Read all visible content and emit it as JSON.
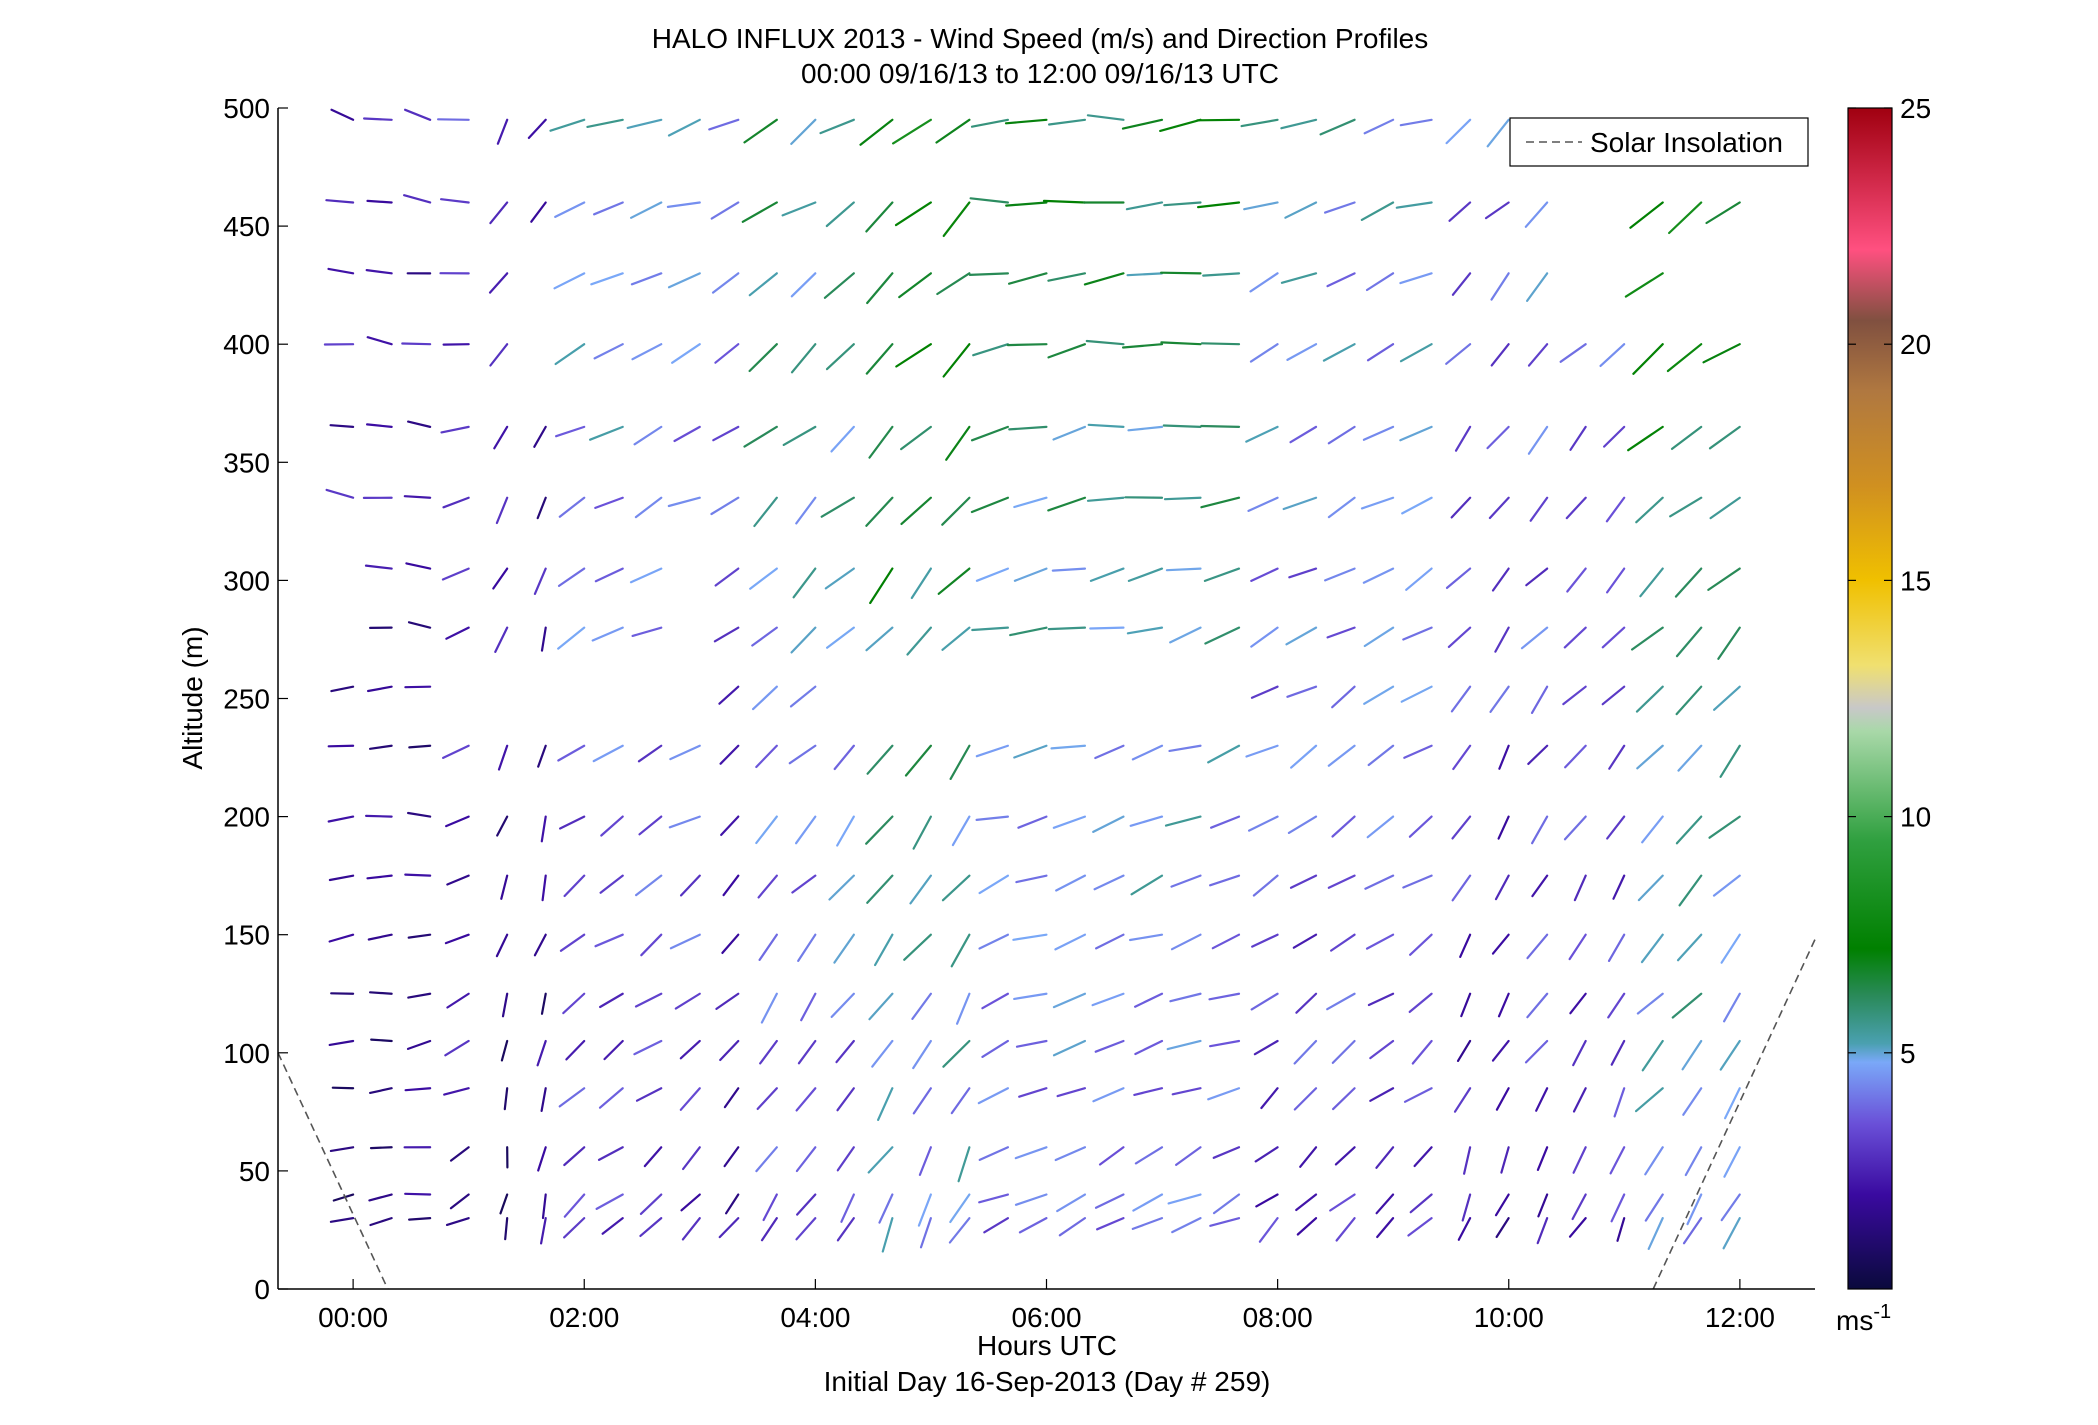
{
  "chart_data": {
    "type": "wind-barb-profile",
    "title": "HALO INFLUX 2013 - Wind Speed (m/s) and Direction Profiles",
    "subtitle": "00:00 09/16/13 to 12:00 09/16/13  UTC",
    "xlabel": "Hours UTC",
    "xlabel2": "Initial Day 16-Sep-2013 (Day # 259)",
    "ylabel": "Altitude (m)",
    "xlim_hours": [
      -0.65,
      12.65
    ],
    "ylim": [
      0,
      500
    ],
    "xticks": [
      {
        "value": 0,
        "label": "00:00"
      },
      {
        "value": 2,
        "label": "02:00"
      },
      {
        "value": 4,
        "label": "04:00"
      },
      {
        "value": 6,
        "label": "06:00"
      },
      {
        "value": 8,
        "label": "08:00"
      },
      {
        "value": 10,
        "label": "10:00"
      },
      {
        "value": 12,
        "label": "12:00"
      }
    ],
    "yticks": [
      {
        "value": 0,
        "label": "0"
      },
      {
        "value": 50,
        "label": "50"
      },
      {
        "value": 100,
        "label": "100"
      },
      {
        "value": 150,
        "label": "150"
      },
      {
        "value": 200,
        "label": "200"
      },
      {
        "value": 250,
        "label": "250"
      },
      {
        "value": 300,
        "label": "300"
      },
      {
        "value": 350,
        "label": "350"
      },
      {
        "value": 400,
        "label": "400"
      },
      {
        "value": 450,
        "label": "450"
      },
      {
        "value": 500,
        "label": "500"
      }
    ],
    "colorbar": {
      "range": [
        0,
        25
      ],
      "ticks": [
        {
          "value": 5,
          "label": "5"
        },
        {
          "value": 10,
          "label": "10"
        },
        {
          "value": 15,
          "label": "15"
        },
        {
          "value": 20,
          "label": "20"
        },
        {
          "value": 25,
          "label": "25"
        }
      ],
      "unit_label": "ms",
      "unit_exp": "-1",
      "stops": [
        {
          "v": 0,
          "c": "#0a0a3c"
        },
        {
          "v": 2,
          "c": "#3a0aa0"
        },
        {
          "v": 3.5,
          "c": "#6a50d8"
        },
        {
          "v": 4.8,
          "c": "#7aa8f8"
        },
        {
          "v": 5.2,
          "c": "#4aa0b0"
        },
        {
          "v": 6.2,
          "c": "#2a8a5a"
        },
        {
          "v": 7.2,
          "c": "#008000"
        },
        {
          "v": 9.5,
          "c": "#30a040"
        },
        {
          "v": 11.8,
          "c": "#a8d8a8"
        },
        {
          "v": 12.3,
          "c": "#c8c8c8"
        },
        {
          "v": 13.2,
          "c": "#f0e070"
        },
        {
          "v": 15,
          "c": "#f0c000"
        },
        {
          "v": 17,
          "c": "#d09020"
        },
        {
          "v": 19,
          "c": "#b07840"
        },
        {
          "v": 20.5,
          "c": "#805040"
        },
        {
          "v": 22,
          "c": "#ff5080"
        },
        {
          "v": 25,
          "c": "#a00010"
        }
      ]
    },
    "legend": {
      "label": "Solar Insolation",
      "position": "top-right",
      "color": "#555555"
    },
    "solar_insolation_curve": {
      "left": [
        {
          "x": -0.65,
          "y": 100
        },
        {
          "x": 0.3,
          "y": 0
        }
      ],
      "right": [
        {
          "x": 11.25,
          "y": 0
        },
        {
          "x": 12.65,
          "y": 148
        }
      ]
    },
    "altitudes_m": [
      30,
      40,
      60,
      85,
      105,
      125,
      150,
      175,
      200,
      230,
      255,
      280,
      305,
      335,
      365,
      400,
      430,
      460,
      495
    ],
    "times_hours_start": 0.0,
    "times_hours_step": 0.3333,
    "times_count": 37,
    "segments": [
      {
        "t0": 0.0,
        "t1": 0.7,
        "spd": 2.5,
        "dir": 270
      },
      {
        "t0": 0.7,
        "t1": 1.1,
        "spd": 3.5,
        "dir": 255
      },
      {
        "t0": 1.1,
        "t1": 1.8,
        "spd": 2.5,
        "dir": 200
      },
      {
        "t0": 1.8,
        "t1": 3.0,
        "spd": 5.0,
        "dir": 240
      },
      {
        "t0": 3.0,
        "t1": 3.4,
        "spd": 4.0,
        "dir": 230
      },
      {
        "t0": 3.4,
        "t1": 4.4,
        "spd": 6.0,
        "dir": 225
      },
      {
        "t0": 4.4,
        "t1": 5.6,
        "spd": 7.5,
        "dir": 220
      },
      {
        "t0": 5.6,
        "t1": 7.7,
        "spd": 6.5,
        "dir": 255
      },
      {
        "t0": 7.7,
        "t1": 9.4,
        "spd": 5.0,
        "dir": 240
      },
      {
        "t0": 9.4,
        "t1": 10.3,
        "spd": 4.0,
        "dir": 215
      },
      {
        "t0": 10.3,
        "t1": 11.0,
        "spd": 4.5,
        "dir": 220
      },
      {
        "t0": 11.0,
        "t1": 12.3,
        "spd": 7.5,
        "dir": 225
      }
    ],
    "gaps": [
      {
        "alt": [
          250,
          260
        ],
        "t0": 0.7,
        "t1": 3.3
      },
      {
        "alt": [
          250,
          260
        ],
        "t0": 4.0,
        "t1": 7.9
      },
      {
        "alt": [
          270,
          315
        ],
        "t0": 0.0,
        "t1": 0.3
      },
      {
        "alt": [
          270,
          315
        ],
        "t0": 2.9,
        "t1": 3.3
      },
      {
        "alt": [
          360,
          420
        ],
        "t0": 3.0,
        "t1": 3.3
      },
      {
        "alt": [
          390,
          440
        ],
        "t0": 1.6,
        "t1": 1.7
      },
      {
        "alt": [
          420,
          440
        ],
        "t0": 3.4,
        "t1": 3.6
      },
      {
        "alt": [
          420,
          480
        ],
        "t0": 10.5,
        "t1": 11.3
      },
      {
        "alt": [
          420,
          440
        ],
        "t0": 11.5,
        "t1": 12.0
      },
      {
        "alt": [
          460,
          470
        ],
        "t0": 11.5,
        "t1": 11.6
      },
      {
        "alt": [
          490,
          500
        ],
        "t0": 12.0,
        "t1": 12.3
      }
    ]
  }
}
